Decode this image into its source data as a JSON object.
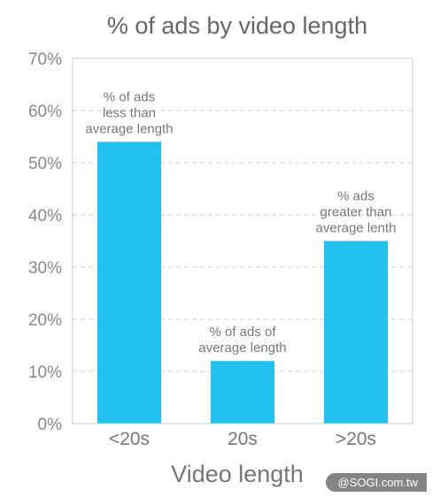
{
  "chart_data": {
    "type": "bar",
    "title": "% of ads by video length",
    "xlabel": "Video length",
    "ylabel": "",
    "categories": [
      "<20s",
      "20s",
      ">20s"
    ],
    "values": [
      54,
      12,
      35
    ],
    "ylim": [
      0,
      70
    ],
    "yticks": [
      "0%",
      "10%",
      "20%",
      "30%",
      "40%",
      "50%",
      "60%",
      "70%"
    ],
    "grid": true,
    "bar_color": "#22c2ee",
    "annotations": [
      [
        "% of ads",
        "less than",
        "average length"
      ],
      [
        "% of ads of",
        "average length"
      ],
      [
        "% ads",
        "greater than",
        "average lenth"
      ]
    ]
  },
  "watermark": "@SOGI.com.tw"
}
